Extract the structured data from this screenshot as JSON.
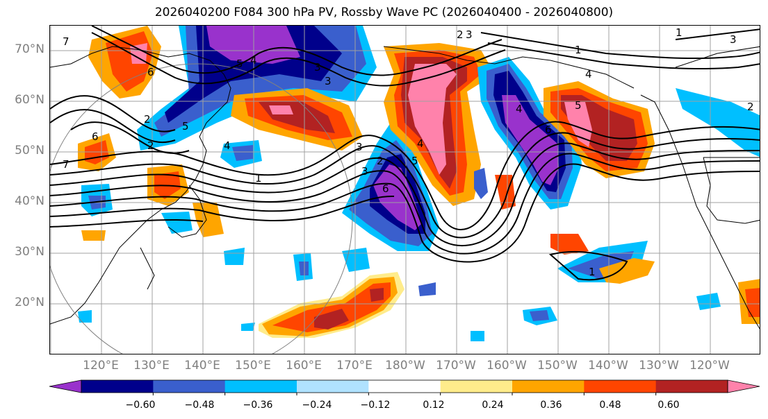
{
  "title": "2026040200 F084 300 hPa PV, Rossby Wave PC (2026040400 - 2026040800)",
  "lat_labels": [
    "70°N",
    "60°N",
    "50°N",
    "40°N",
    "30°N",
    "20°N"
  ],
  "lon_labels": [
    "120°E",
    "130°E",
    "140°E",
    "150°E",
    "160°E",
    "170°E",
    "180°W",
    "170°W",
    "160°W",
    "150°W",
    "140°W",
    "130°W",
    "120°W"
  ],
  "contour_labels": [
    "7",
    "6",
    "5",
    "4",
    "3",
    "2",
    "1",
    "7",
    "6",
    "5",
    "4",
    "3",
    "2",
    "1",
    "2",
    "3",
    "4",
    "5",
    "6",
    "3",
    "2",
    "3",
    "4",
    "5",
    "6",
    "1",
    "2",
    "3",
    "4",
    "1"
  ],
  "colorbar": {
    "ticks": [
      "−0.60",
      "−0.48",
      "−0.36",
      "−0.24",
      "−0.12",
      "0.12",
      "0.24",
      "0.36",
      "0.48",
      "0.60"
    ],
    "colors": [
      "#9932cc",
      "#00008b",
      "#3a5fcd",
      "#00bfff",
      "#b0e2ff",
      "#ffffff",
      "#ffec8b",
      "#ffa500",
      "#ff4500",
      "#b22222",
      "#ff82ab"
    ]
  }
}
